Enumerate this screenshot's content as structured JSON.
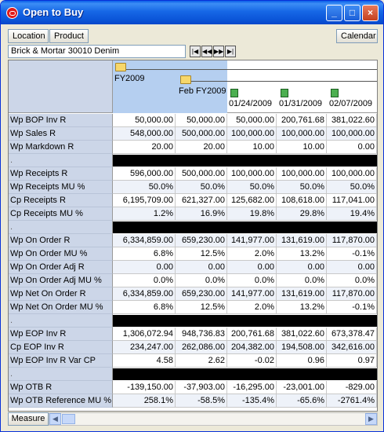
{
  "window": {
    "title": "Open to Buy",
    "icon": "oracle-icon"
  },
  "toolbar": {
    "location_label": "Location",
    "product_label": "Product",
    "calendar_label": "Calendar"
  },
  "path": {
    "value": "Brick & Mortar  30010 Denim"
  },
  "header": {
    "fy": "FY2009",
    "month": "Feb FY2009",
    "weeks": [
      "01/24/2009",
      "01/31/2009",
      "02/07/2009"
    ]
  },
  "rows": [
    {
      "label": "Wp BOP Inv R",
      "values": [
        "50,000.00",
        "50,000.00",
        "50,000.00",
        "200,761.68",
        "381,022.60"
      ]
    },
    {
      "label": "Wp Sales R",
      "values": [
        "548,000.00",
        "500,000.00",
        "100,000.00",
        "100,000.00",
        "100,000.00"
      ]
    },
    {
      "label": "Wp Markdown R",
      "values": [
        "20.00",
        "20.00",
        "10.00",
        "10.00",
        "0.00"
      ]
    },
    {
      "label": ".",
      "sep": true
    },
    {
      "label": "Wp Receipts R",
      "values": [
        "596,000.00",
        "500,000.00",
        "100,000.00",
        "100,000.00",
        "100,000.00"
      ]
    },
    {
      "label": "Wp Receipts MU %",
      "values": [
        "50.0%",
        "50.0%",
        "50.0%",
        "50.0%",
        "50.0%"
      ]
    },
    {
      "label": "Cp Receipts R",
      "values": [
        "6,195,709.00",
        "621,327.00",
        "125,682.00",
        "108,618.00",
        "117,041.00"
      ]
    },
    {
      "label": "Cp Receipts MU %",
      "values": [
        "1.2%",
        "16.9%",
        "19.8%",
        "29.8%",
        "19.4%"
      ]
    },
    {
      "label": ".",
      "sep": true
    },
    {
      "label": "Wp On Order R",
      "values": [
        "6,334,859.00",
        "659,230.00",
        "141,977.00",
        "131,619.00",
        "117,870.00"
      ]
    },
    {
      "label": "Wp On Order MU %",
      "values": [
        "6.8%",
        "12.5%",
        "2.0%",
        "13.2%",
        "-0.1%"
      ]
    },
    {
      "label": "Wp On Order Adj R",
      "values": [
        "0.00",
        "0.00",
        "0.00",
        "0.00",
        "0.00"
      ]
    },
    {
      "label": "Wp On Order Adj MU %",
      "values": [
        "0.0%",
        "0.0%",
        "0.0%",
        "0.0%",
        "0.0%"
      ]
    },
    {
      "label": "Wp Net On Order R",
      "values": [
        "6,334,859.00",
        "659,230.00",
        "141,977.00",
        "131,619.00",
        "117,870.00"
      ]
    },
    {
      "label": "Wp Net On Order MU %",
      "values": [
        "6.8%",
        "12.5%",
        "2.0%",
        "13.2%",
        "-0.1%"
      ]
    },
    {
      "label": ".",
      "sep": true
    },
    {
      "label": "Wp EOP Inv R",
      "values": [
        "1,306,072.94",
        "948,736.83",
        "200,761.68",
        "381,022.60",
        "673,378.47"
      ]
    },
    {
      "label": "Cp EOP Inv R",
      "values": [
        "234,247.00",
        "262,086.00",
        "204,382.00",
        "194,508.00",
        "342,616.00"
      ]
    },
    {
      "label": "Wp EOP Inv R Var CP",
      "values": [
        "4.58",
        "2.62",
        "-0.02",
        "0.96",
        "0.97"
      ]
    },
    {
      "label": ".",
      "sep": true
    },
    {
      "label": "Wp OTB R",
      "values": [
        "-139,150.00",
        "-37,903.00",
        "-16,295.00",
        "-23,001.00",
        "-829.00"
      ]
    },
    {
      "label": "Wp OTB Reference MU %",
      "values": [
        "258.1%",
        "-58.5%",
        "-135.4%",
        "-65.6%",
        "-2761.4%"
      ]
    }
  ],
  "status": {
    "measure_label": "Measure"
  }
}
